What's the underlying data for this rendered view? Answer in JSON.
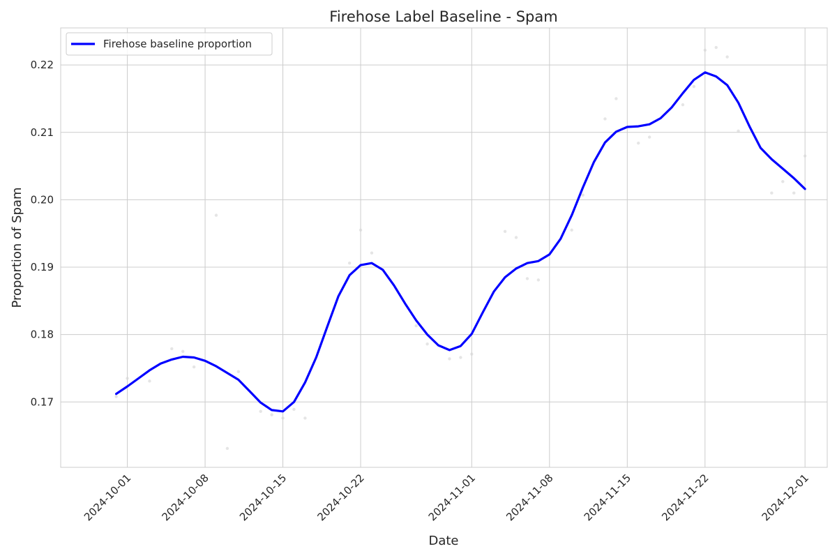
{
  "chart_data": {
    "type": "line",
    "title": "Firehose Label Baseline - Spam",
    "xlabel": "Date",
    "ylabel": "Proportion of Spam",
    "xlim": [
      "2024-09-25",
      "2024-12-03"
    ],
    "ylim": [
      0.1603,
      0.2255
    ],
    "x_ticks": [
      "2024-10-01",
      "2024-10-08",
      "2024-10-15",
      "2024-10-22",
      "2024-11-01",
      "2024-11-08",
      "2024-11-15",
      "2024-11-22",
      "2024-12-01"
    ],
    "y_ticks": [
      0.17,
      0.18,
      0.19,
      0.2,
      0.21,
      0.22
    ],
    "y_tick_labels": [
      "0.17",
      "0.18",
      "0.19",
      "0.20",
      "0.21",
      "0.22"
    ],
    "grid": true,
    "legend_position": "top-left",
    "colors": {
      "line": "#0000ff",
      "points": "#d3d3d3",
      "grid": "#cccccc"
    },
    "series": [
      {
        "name": "Firehose baseline proportion",
        "x": [
          "2024-09-30",
          "2024-10-01",
          "2024-10-02",
          "2024-10-03",
          "2024-10-04",
          "2024-10-05",
          "2024-10-06",
          "2024-10-07",
          "2024-10-08",
          "2024-10-09",
          "2024-10-10",
          "2024-10-11",
          "2024-10-12",
          "2024-10-13",
          "2024-10-14",
          "2024-10-15",
          "2024-10-16",
          "2024-10-17",
          "2024-10-18",
          "2024-10-19",
          "2024-10-20",
          "2024-10-21",
          "2024-10-22",
          "2024-10-23",
          "2024-10-24",
          "2024-10-25",
          "2024-10-26",
          "2024-10-27",
          "2024-10-28",
          "2024-10-29",
          "2024-10-30",
          "2024-10-31",
          "2024-11-01",
          "2024-11-02",
          "2024-11-03",
          "2024-11-04",
          "2024-11-05",
          "2024-11-06",
          "2024-11-07",
          "2024-11-08",
          "2024-11-09",
          "2024-11-10",
          "2024-11-11",
          "2024-11-12",
          "2024-11-13",
          "2024-11-14",
          "2024-11-15",
          "2024-11-16",
          "2024-11-17",
          "2024-11-18",
          "2024-11-19",
          "2024-11-20",
          "2024-11-21",
          "2024-11-22",
          "2024-11-23",
          "2024-11-24",
          "2024-11-25",
          "2024-11-26",
          "2024-11-27",
          "2024-11-28",
          "2024-11-29",
          "2024-11-30",
          "2024-12-01"
        ],
        "values": [
          0.1712,
          0.1723,
          0.1735,
          0.1747,
          0.1757,
          0.1763,
          0.1767,
          0.1766,
          0.1761,
          0.1753,
          0.1743,
          0.1733,
          0.1716,
          0.1699,
          0.1688,
          0.1686,
          0.17,
          0.1729,
          0.1766,
          0.1812,
          0.1857,
          0.1888,
          0.1903,
          0.1906,
          0.1896,
          0.1873,
          0.1846,
          0.1821,
          0.18,
          0.1784,
          0.1777,
          0.1783,
          0.1801,
          0.1833,
          0.1864,
          0.1885,
          0.1898,
          0.1906,
          0.1909,
          0.1919,
          0.1942,
          0.1977,
          0.2018,
          0.2056,
          0.2085,
          0.2101,
          0.2108,
          0.2109,
          0.2112,
          0.2121,
          0.2137,
          0.2158,
          0.2178,
          0.2189,
          0.2183,
          0.217,
          0.2144,
          0.2109,
          0.2077,
          0.206,
          0.2046,
          0.2032,
          0.2016
        ]
      }
    ],
    "raw_points": {
      "x": [
        "2024-09-30",
        "2024-10-01",
        "2024-10-03",
        "2024-10-05",
        "2024-10-06",
        "2024-10-07",
        "2024-10-09",
        "2024-10-10",
        "2024-10-11",
        "2024-10-13",
        "2024-10-14",
        "2024-10-15",
        "2024-10-16",
        "2024-10-17",
        "2024-10-21",
        "2024-10-22",
        "2024-10-23",
        "2024-10-27",
        "2024-10-28",
        "2024-10-30",
        "2024-10-31",
        "2024-11-01",
        "2024-11-04",
        "2024-11-05",
        "2024-11-06",
        "2024-11-07",
        "2024-11-10",
        "2024-11-11",
        "2024-11-13",
        "2024-11-14",
        "2024-11-16",
        "2024-11-17",
        "2024-11-20",
        "2024-11-21",
        "2024-11-22",
        "2024-11-23",
        "2024-11-24",
        "2024-11-25",
        "2024-11-28",
        "2024-11-29",
        "2024-11-30",
        "2024-12-01"
      ],
      "values": [
        0.1708,
        0.1735,
        0.1731,
        0.1779,
        0.1775,
        0.1752,
        0.1977,
        0.1631,
        0.1745,
        0.1686,
        0.1681,
        0.1676,
        0.1689,
        0.1676,
        0.1906,
        0.1955,
        0.1921,
        0.1813,
        0.1786,
        0.1764,
        0.1766,
        0.1771,
        0.1953,
        0.1944,
        0.1883,
        0.1881,
        0.1955,
        0.2007,
        0.212,
        0.215,
        0.2084,
        0.2093,
        0.2141,
        0.2168,
        0.2222,
        0.2226,
        0.2212,
        0.2102,
        0.201,
        0.2027,
        0.201,
        0.2065
      ]
    }
  }
}
